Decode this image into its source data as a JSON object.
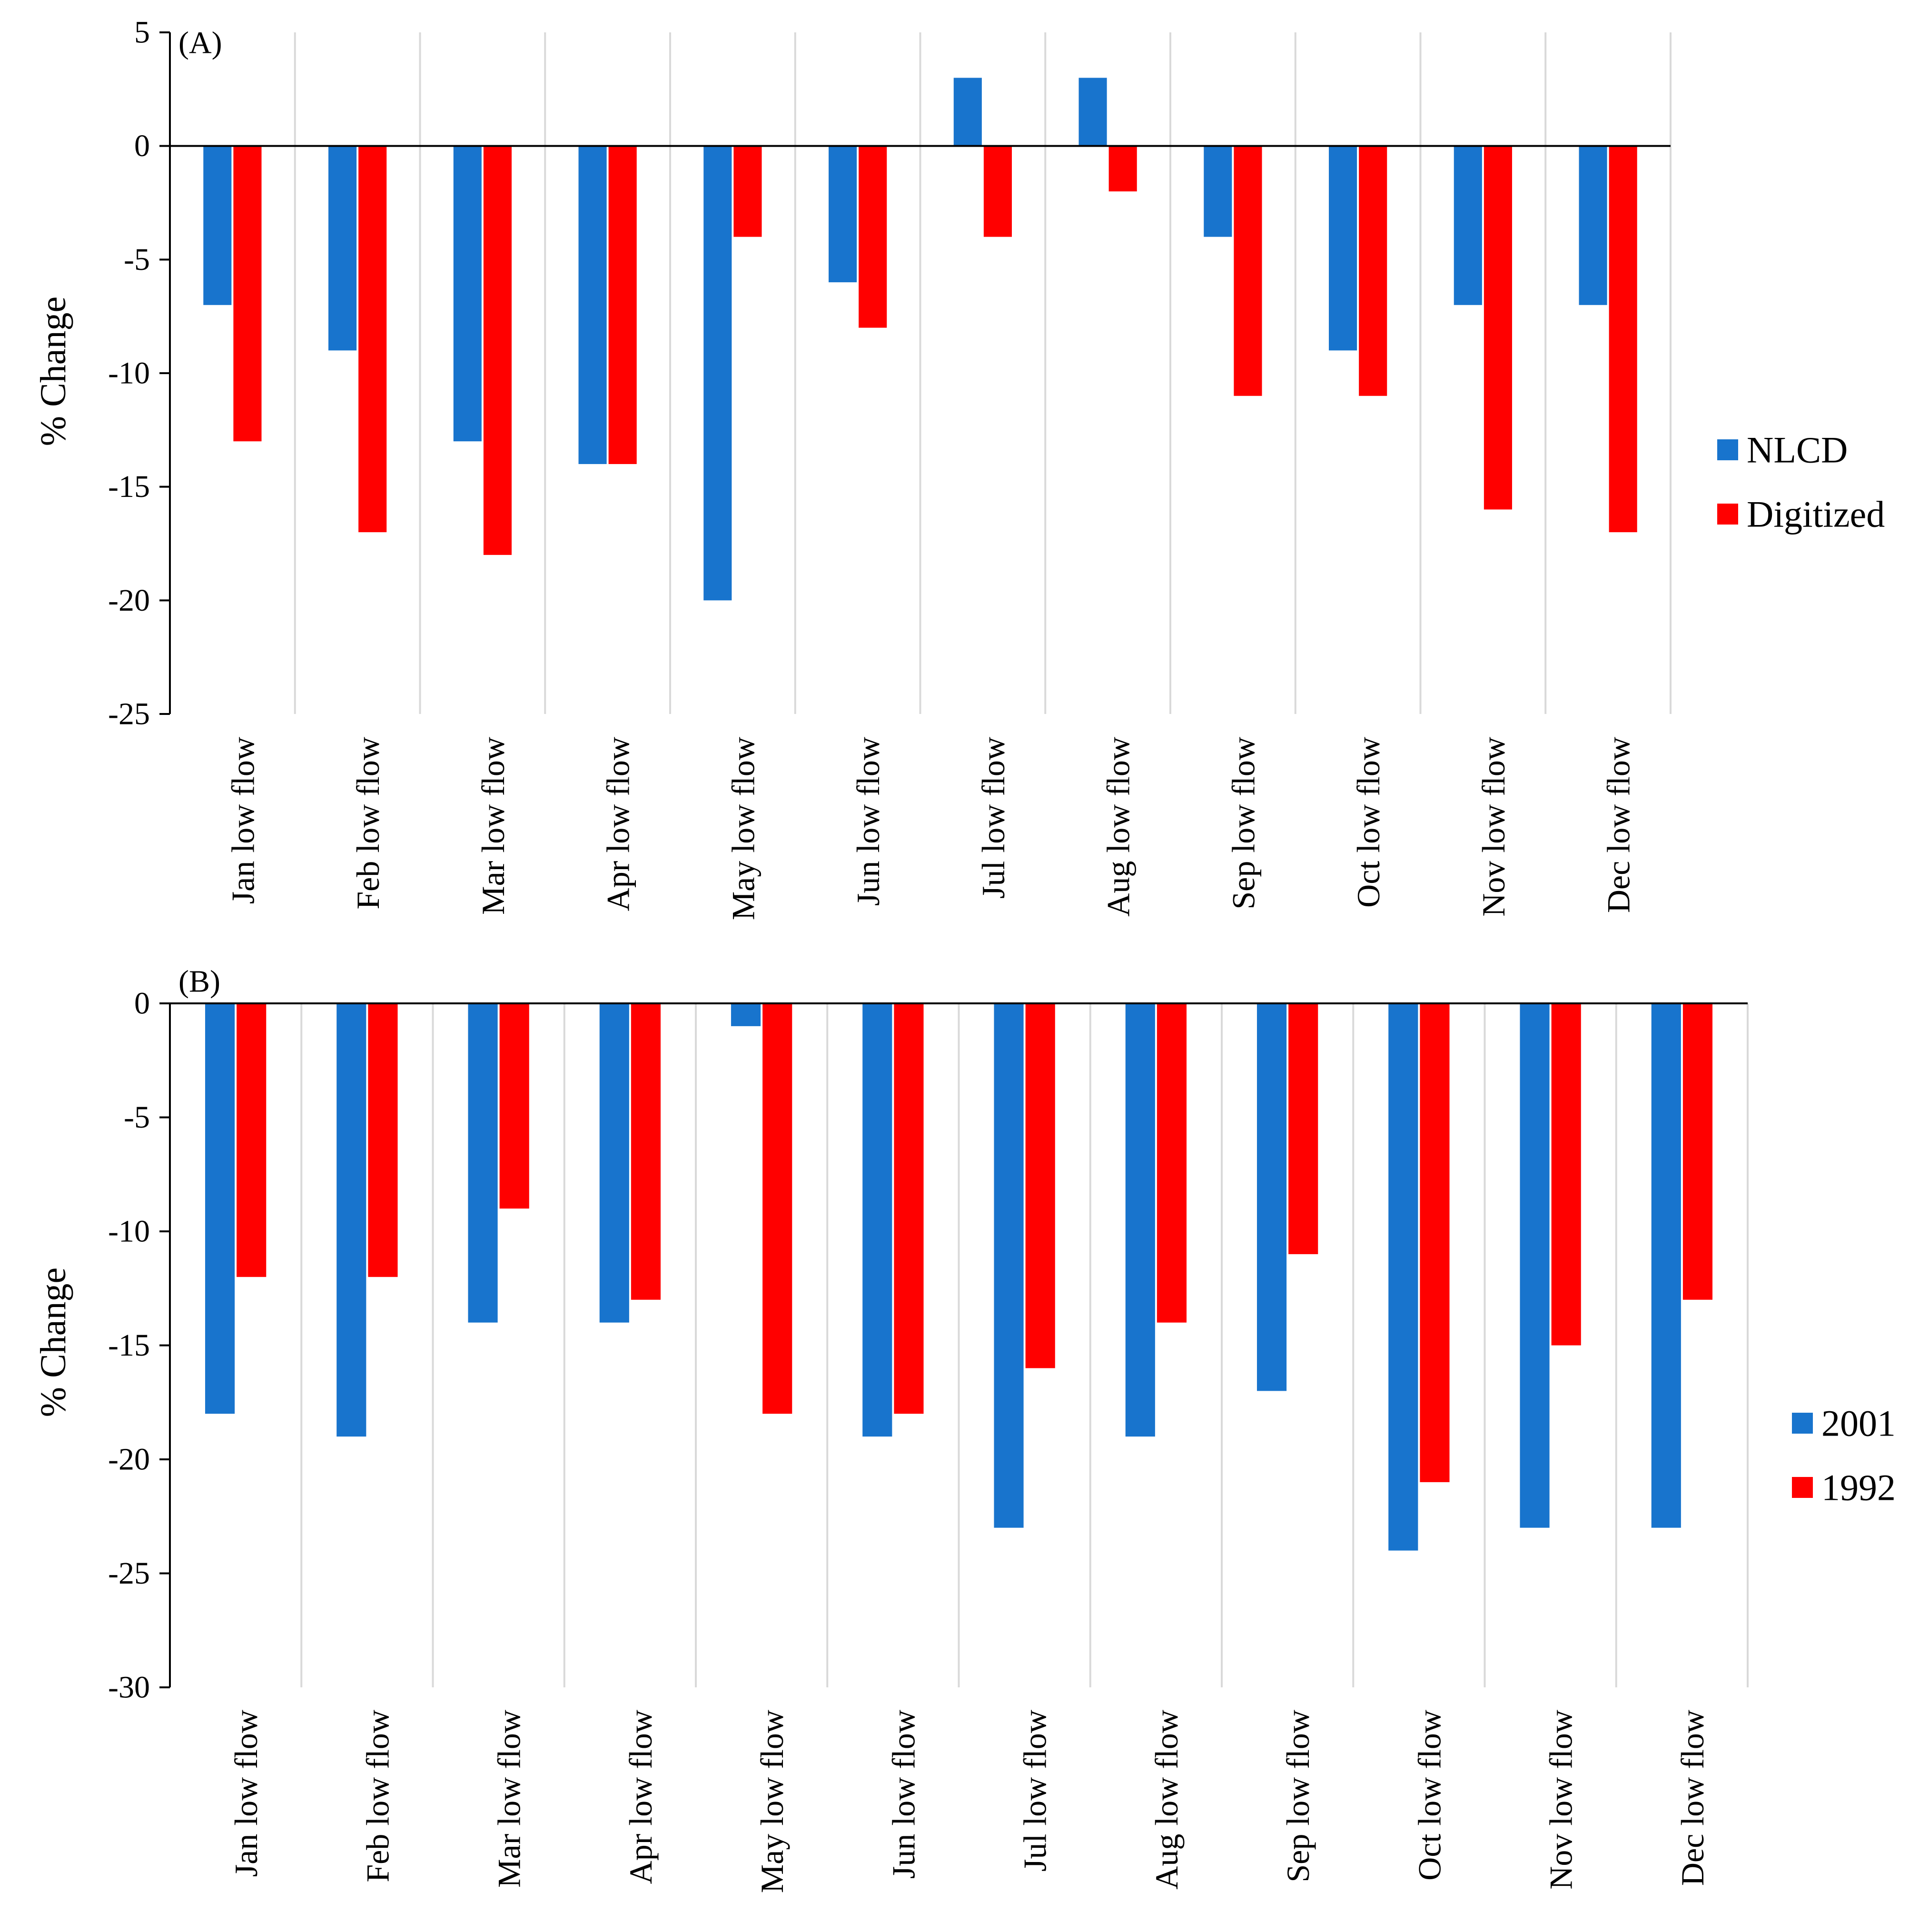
{
  "chart_data": [
    {
      "type": "bar",
      "panel_label": "(A)",
      "ylabel": "% Change",
      "xlabel": "",
      "ylim": [
        -25,
        5
      ],
      "yticks": [
        5,
        0,
        -5,
        -10,
        -15,
        -20,
        -25
      ],
      "ytick_labels": [
        "5",
        "0",
        "-5",
        "-10",
        "-15",
        "-20",
        "-25"
      ],
      "grid": "vertical separators between categories",
      "legend_position": "right",
      "categories": [
        "Jan low flow",
        "Feb low flow",
        "Mar low flow",
        "Apr low flow",
        "May low flow",
        "Jun low flow",
        "Jul low flow",
        "Aug low flow",
        "Sep low flow",
        "Oct low flow",
        "Nov low flow",
        "Dec low flow"
      ],
      "series": [
        {
          "name": "NLCD",
          "color": "#1874CD",
          "values": [
            -7,
            -9,
            -13,
            -14,
            -20,
            -6,
            3,
            3,
            -4,
            -9,
            -7,
            -7
          ]
        },
        {
          "name": "Digitized",
          "color": "#FF0000",
          "values": [
            -13,
            -17,
            -18,
            -14,
            -4,
            -8,
            -4,
            -2,
            -11,
            -11,
            -16,
            -17
          ]
        }
      ]
    },
    {
      "type": "bar",
      "panel_label": "(B)",
      "ylabel": "% Change",
      "xlabel": "",
      "ylim": [
        -30,
        0
      ],
      "yticks": [
        0,
        -5,
        -10,
        -15,
        -20,
        -25,
        -30
      ],
      "ytick_labels": [
        "0",
        "-5",
        "-10",
        "-15",
        "-20",
        "-25",
        "-30"
      ],
      "grid": "vertical separators between categories",
      "legend_position": "right",
      "categories": [
        "Jan low flow",
        "Feb low flow",
        "Mar low flow",
        "Apr low flow",
        "May low flow",
        "Jun low flow",
        "Jul low flow",
        "Aug low flow",
        "Sep low flow",
        "Oct low flow",
        "Nov low flow",
        "Dec low flow"
      ],
      "series": [
        {
          "name": "2001",
          "color": "#1874CD",
          "values": [
            -18,
            -19,
            -14,
            -14,
            -1,
            -19,
            -23,
            -19,
            -17,
            -24,
            -23,
            -23
          ]
        },
        {
          "name": "1992",
          "color": "#FF0000",
          "values": [
            -12,
            -12,
            -9,
            -13,
            -18,
            -18,
            -16,
            -14,
            -11,
            -21,
            -15,
            -13
          ]
        }
      ]
    }
  ]
}
